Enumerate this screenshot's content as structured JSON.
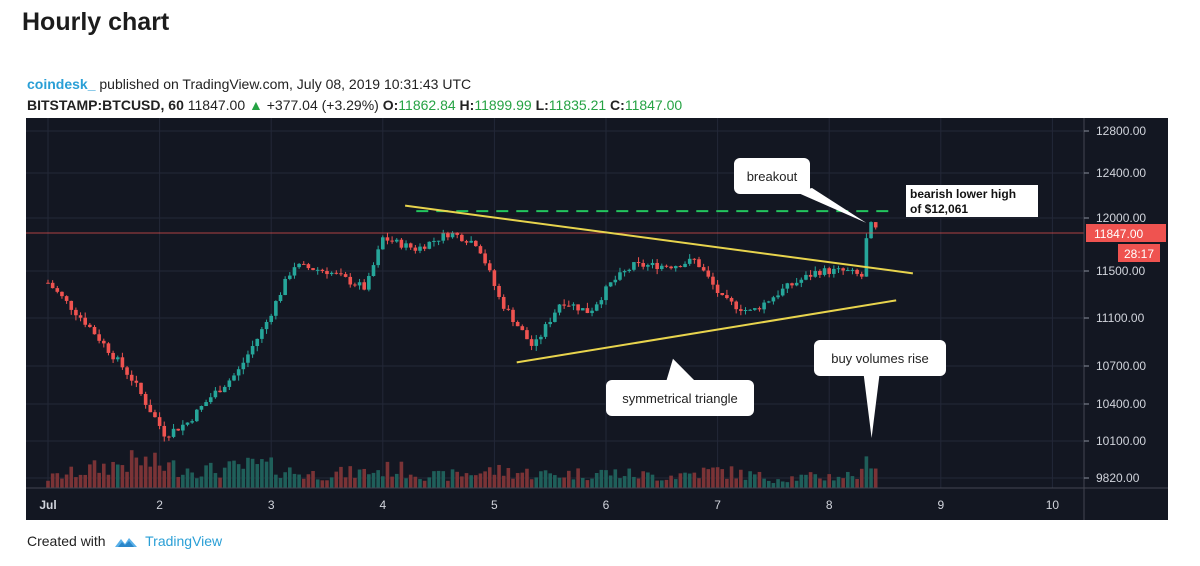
{
  "page": {
    "title": "Hourly chart"
  },
  "header": {
    "author": "coindesk_",
    "published_text": "published on TradingView.com, July 08, 2019 10:31:43 UTC",
    "symbol": "BITSTAMP:BTCUSD, 60",
    "last": "11847.00",
    "change": "+377.04 (+3.29%)",
    "o_label": "O:",
    "o_value": "11862.84",
    "h_label": "H:",
    "h_value": "11899.99",
    "l_label": "L:",
    "l_value": "11835.21",
    "c_label": "C:",
    "c_value": "11847.00"
  },
  "footer": {
    "created_with": "Created with",
    "brand": "TradingView"
  },
  "colors": {
    "background": "#131722",
    "up": "#26a69a",
    "down": "#ef5350",
    "trendline": "#e8d44d",
    "resistance": "#22c55e",
    "price_line": "#ef5350"
  },
  "chart_data": {
    "type": "candlestick",
    "x_ticks": [
      "Jul",
      "2",
      "3",
      "4",
      "5",
      "6",
      "7",
      "8",
      "9",
      "10"
    ],
    "y_ticks": [
      "12800.00",
      "12400.00",
      "12000.00",
      "11500.00",
      "11100.00",
      "10700.00",
      "10400.00",
      "10100.00",
      "9820.00"
    ],
    "ylim": [
      9750,
      12900
    ],
    "xlim": [
      0,
      9.3
    ],
    "last_price_label": "11847.00",
    "last_price": 11847,
    "countdown_label": "28:17",
    "price_path": [
      [
        0.0,
        11400
      ],
      [
        0.35,
        11050
      ],
      [
        0.75,
        10600
      ],
      [
        1.05,
        10150
      ],
      [
        1.25,
        10250
      ],
      [
        1.45,
        10450
      ],
      [
        1.7,
        10650
      ],
      [
        1.95,
        11050
      ],
      [
        2.2,
        11550
      ],
      [
        2.5,
        11500
      ],
      [
        2.85,
        11350
      ],
      [
        3.0,
        11800
      ],
      [
        3.3,
        11700
      ],
      [
        3.6,
        11850
      ],
      [
        3.85,
        11750
      ],
      [
        4.05,
        11250
      ],
      [
        4.35,
        10850
      ],
      [
        4.6,
        11250
      ],
      [
        4.85,
        11150
      ],
      [
        5.05,
        11400
      ],
      [
        5.25,
        11550
      ],
      [
        5.6,
        11550
      ],
      [
        5.8,
        11600
      ],
      [
        6.05,
        11250
      ],
      [
        6.3,
        11150
      ],
      [
        6.6,
        11350
      ],
      [
        6.9,
        11500
      ],
      [
        7.15,
        11500
      ],
      [
        7.3,
        11450
      ],
      [
        7.35,
        11950
      ],
      [
        7.42,
        11880
      ]
    ],
    "volume_path": [
      [
        0.0,
        0.25
      ],
      [
        0.4,
        0.5
      ],
      [
        0.8,
        0.7
      ],
      [
        1.1,
        0.55
      ],
      [
        1.5,
        0.45
      ],
      [
        1.9,
        0.6
      ],
      [
        2.3,
        0.35
      ],
      [
        2.8,
        0.4
      ],
      [
        3.1,
        0.5
      ],
      [
        3.5,
        0.3
      ],
      [
        4.0,
        0.45
      ],
      [
        4.5,
        0.35
      ],
      [
        5.0,
        0.4
      ],
      [
        5.5,
        0.3
      ],
      [
        6.0,
        0.45
      ],
      [
        6.5,
        0.25
      ],
      [
        7.0,
        0.3
      ],
      [
        7.3,
        0.35
      ],
      [
        7.38,
        1.0
      ],
      [
        7.45,
        0.3
      ]
    ],
    "triangle_upper": [
      [
        3.2,
        12110
      ],
      [
        7.75,
        11480
      ]
    ],
    "triangle_lower": [
      [
        4.2,
        10730
      ],
      [
        7.6,
        11250
      ]
    ],
    "resistance_level": 12061,
    "resistance_range": [
      3.3,
      7.6
    ],
    "annotations": {
      "breakout": "breakout",
      "lower_high_line1": "bearish lower high",
      "lower_high_line2": "of $12,061",
      "triangle": "symmetrical triangle",
      "volumes": "buy volumes rise"
    }
  }
}
